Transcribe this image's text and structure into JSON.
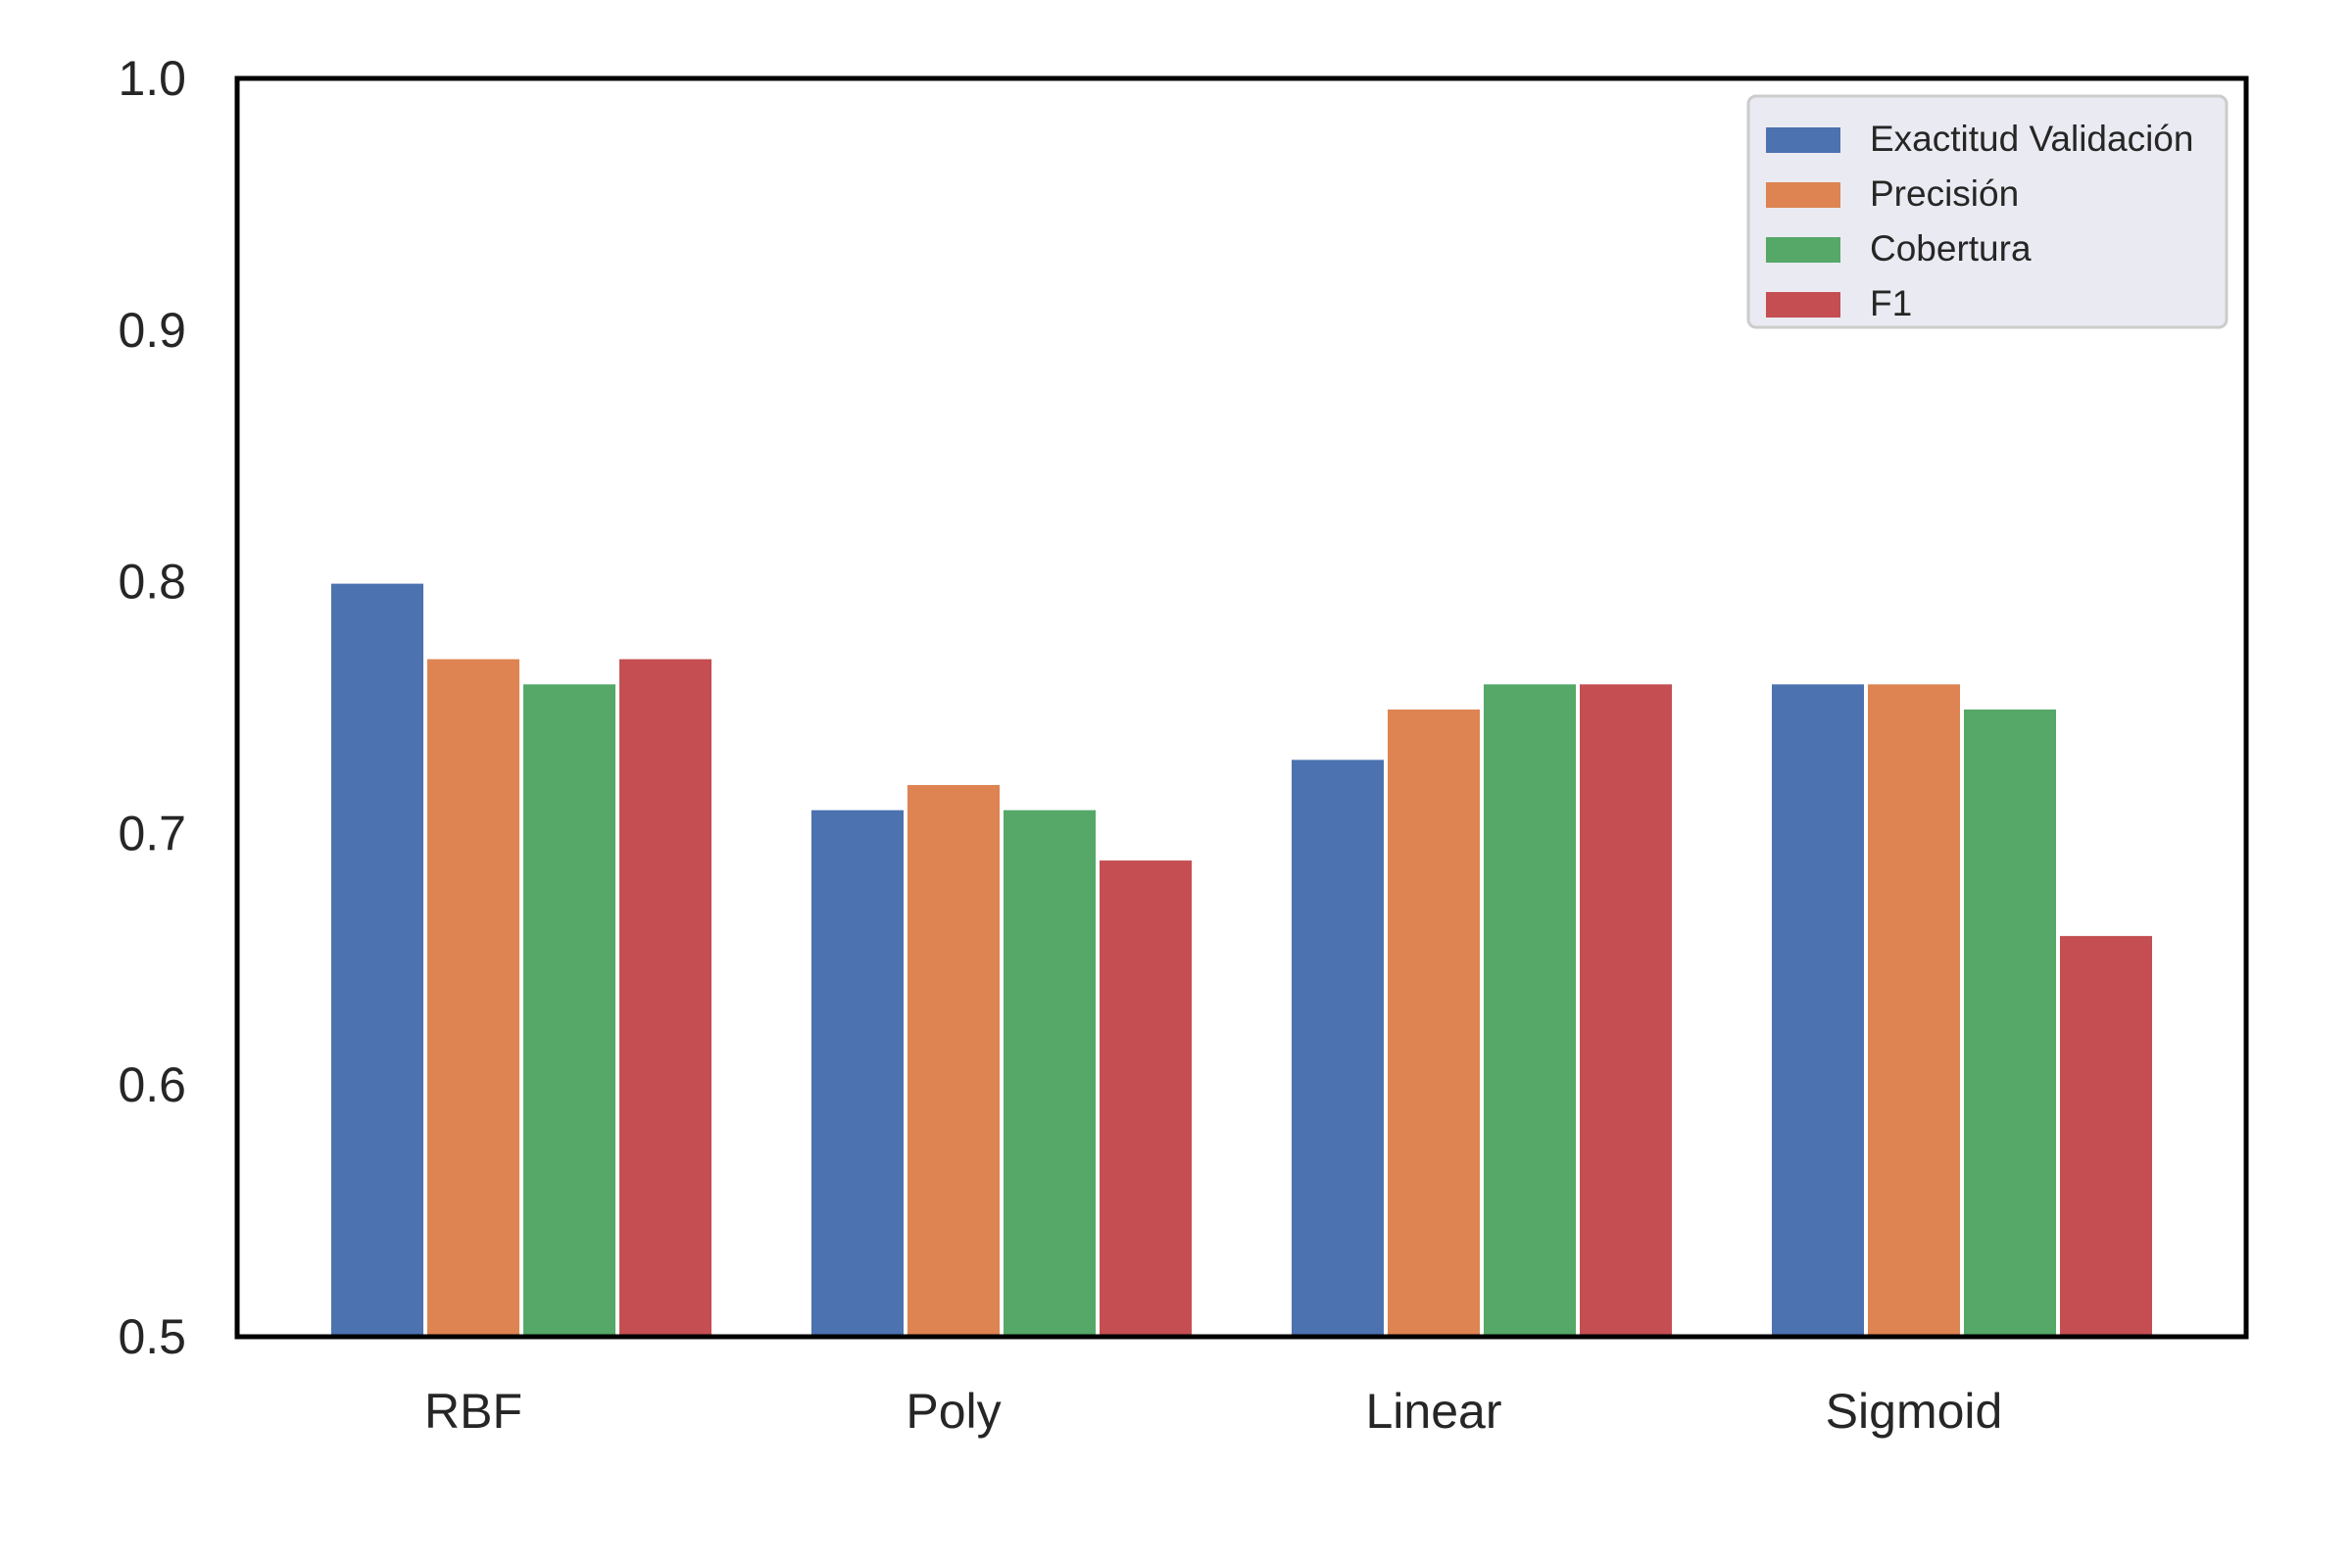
{
  "chart_data": {
    "type": "bar",
    "title": "",
    "xlabel": "",
    "ylabel": "",
    "categories": [
      "RBF",
      "Poly",
      "Linear",
      "Sigmoid"
    ],
    "series": [
      {
        "name": "Exactitud Validación",
        "values": [
          0.8,
          0.71,
          0.73,
          0.76
        ],
        "color": "#4c72b0"
      },
      {
        "name": "Precisión",
        "values": [
          0.77,
          0.72,
          0.75,
          0.76
        ],
        "color": "#dd8452"
      },
      {
        "name": "Cobertura",
        "values": [
          0.76,
          0.71,
          0.76,
          0.75
        ],
        "color": "#55a868"
      },
      {
        "name": "F1",
        "values": [
          0.77,
          0.69,
          0.76,
          0.66
        ],
        "color": "#c44e52"
      }
    ],
    "ylim": [
      0.5,
      1.0
    ],
    "yticks": [
      "0.5",
      "0.6",
      "0.7",
      "0.8",
      "0.9",
      "1.0"
    ],
    "grid": false,
    "legend_position": "top-right"
  }
}
